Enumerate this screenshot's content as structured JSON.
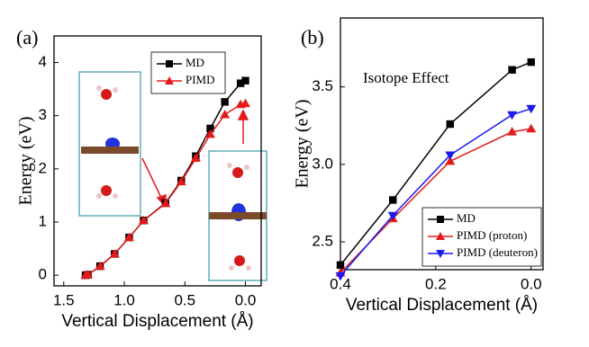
{
  "chart_data": [
    {
      "type": "line",
      "panel_label": "(a)",
      "x_label": "Vertical Displacement (Å)",
      "y_label": "Energy (eV)",
      "x": [
        1.32,
        1.3,
        1.2,
        1.08,
        0.96,
        0.84,
        0.66,
        0.53,
        0.41,
        0.29,
        0.17,
        0.04,
        0.0
      ],
      "series": [
        {
          "name": "MD",
          "color": "#000000",
          "marker": "square",
          "values": [
            0,
            0.01,
            0.17,
            0.4,
            0.71,
            1.03,
            1.36,
            1.78,
            2.24,
            2.76,
            3.26,
            3.61,
            3.66
          ]
        },
        {
          "name": "PIMD",
          "color": "#e41a1a",
          "marker": "triangle-up",
          "values": [
            0,
            0.01,
            0.17,
            0.4,
            0.71,
            1.03,
            1.35,
            1.76,
            2.2,
            2.65,
            3.02,
            3.21,
            3.23
          ]
        }
      ],
      "xlim": [
        1.58,
        -0.13
      ],
      "ylim": [
        -0.2,
        4.5
      ],
      "xticks": [
        {
          "value": 1.5,
          "label": "1.5"
        },
        {
          "value": 1.0,
          "label": "1.0"
        },
        {
          "value": 0.5,
          "label": "0.5"
        },
        {
          "value": 0.0,
          "label": "0.0"
        }
      ],
      "yticks": [
        0,
        1,
        2,
        3,
        4
      ],
      "legend": "upper right"
    },
    {
      "type": "line",
      "panel_label": "(b)",
      "x_label": "Vertical Displacement (Å)",
      "y_label": "Energy (eV)",
      "annotation": "Isotope Effect",
      "x": [
        0.4,
        0.29,
        0.17,
        0.04,
        0.0
      ],
      "series": [
        {
          "name": "MD",
          "color": "#000000",
          "marker": "square",
          "values": [
            2.35,
            2.77,
            3.26,
            3.61,
            3.66
          ]
        },
        {
          "name": "PIMD (proton)",
          "color": "#e41a1a",
          "marker": "triangle-up",
          "values": [
            2.3,
            2.65,
            3.02,
            3.21,
            3.23
          ]
        },
        {
          "name": "PIMD (deuteron)",
          "color": "#1a1aee",
          "marker": "triangle-down",
          "values": [
            2.28,
            2.67,
            3.06,
            3.32,
            3.36
          ]
        }
      ],
      "xlim": [
        0.4,
        -0.025
      ],
      "ylim": [
        2.32,
        3.945
      ],
      "xticks": [
        {
          "value": 0.4,
          "label": "0.4"
        },
        {
          "value": 0.2,
          "label": "0.2"
        },
        {
          "value": 0.0,
          "label": "0.0"
        }
      ],
      "yticks": [
        {
          "value": 2.5,
          "label": "2.5"
        },
        {
          "value": 3.0,
          "label": "3.0"
        },
        {
          "value": 3.5,
          "label": "3.5"
        }
      ],
      "legend": "lower right"
    }
  ]
}
